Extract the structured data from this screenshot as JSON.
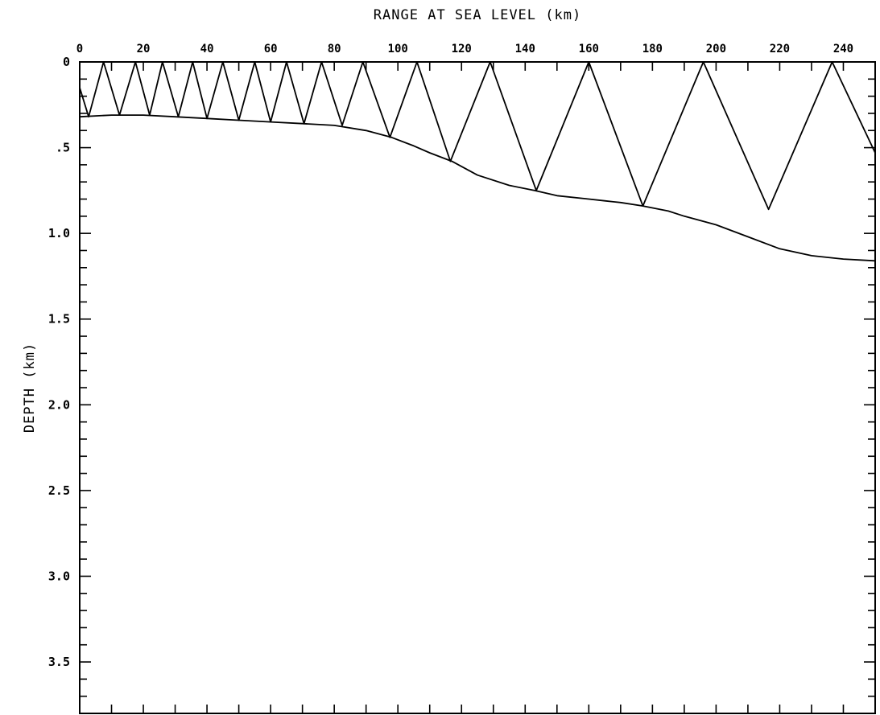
{
  "chart_data": {
    "type": "line",
    "title": "",
    "xlabel": "RANGE AT SEA LEVEL (km)",
    "ylabel": "DEPTH (km)",
    "xlim": [
      0,
      250
    ],
    "ylim": [
      0,
      3.8
    ],
    "y_inverted": true,
    "x_axis_position": "top",
    "grid": false,
    "legend": "none",
    "x_ticks": [
      0,
      20,
      40,
      60,
      80,
      100,
      120,
      140,
      160,
      180,
      200,
      220,
      240
    ],
    "x_tick_labels": [
      "0",
      "20",
      "40",
      "60",
      "80",
      "100",
      "120",
      "140",
      "160",
      "180",
      "200",
      "220",
      "240"
    ],
    "y_ticks": [
      0,
      0.5,
      1.0,
      1.5,
      2.0,
      2.5,
      3.0,
      3.5
    ],
    "y_tick_labels": [
      "0",
      ".5",
      "1.0",
      "1.5",
      "2.0",
      "2.5",
      "3.0",
      "3.5"
    ],
    "series": [
      {
        "x": [
          0,
          10,
          20,
          30,
          40,
          50,
          60,
          70,
          80,
          90,
          98,
          105,
          110,
          117,
          125,
          135,
          143,
          150,
          160,
          165,
          170,
          177,
          185,
          190,
          200,
          210,
          220,
          230,
          240,
          250
        ],
        "y": [
          0.32,
          0.31,
          0.31,
          0.32,
          0.33,
          0.34,
          0.35,
          0.36,
          0.37,
          0.4,
          0.44,
          0.49,
          0.53,
          0.58,
          0.66,
          0.72,
          0.75,
          0.78,
          0.8,
          0.81,
          0.82,
          0.84,
          0.87,
          0.9,
          0.95,
          1.02,
          1.09,
          1.13,
          1.15,
          1.16
        ]
      },
      {
        "x": [
          0,
          2.8,
          7.5,
          12.5,
          17.5,
          22,
          26,
          31,
          35.5,
          40,
          45,
          50,
          55,
          60,
          65,
          70.5,
          76,
          82.5,
          89,
          97.5,
          106,
          116.5,
          129,
          143.5,
          160,
          177,
          196,
          216.5,
          236.5,
          250
        ],
        "y": [
          0.15,
          0.32,
          0,
          0.31,
          0,
          0.31,
          0,
          0.32,
          0,
          0.33,
          0,
          0.34,
          0,
          0.35,
          0,
          0.36,
          0,
          0.37,
          0,
          0.44,
          0,
          0.58,
          0,
          0.75,
          0,
          0.84,
          0,
          0.86,
          0,
          0.53
        ]
      }
    ]
  }
}
